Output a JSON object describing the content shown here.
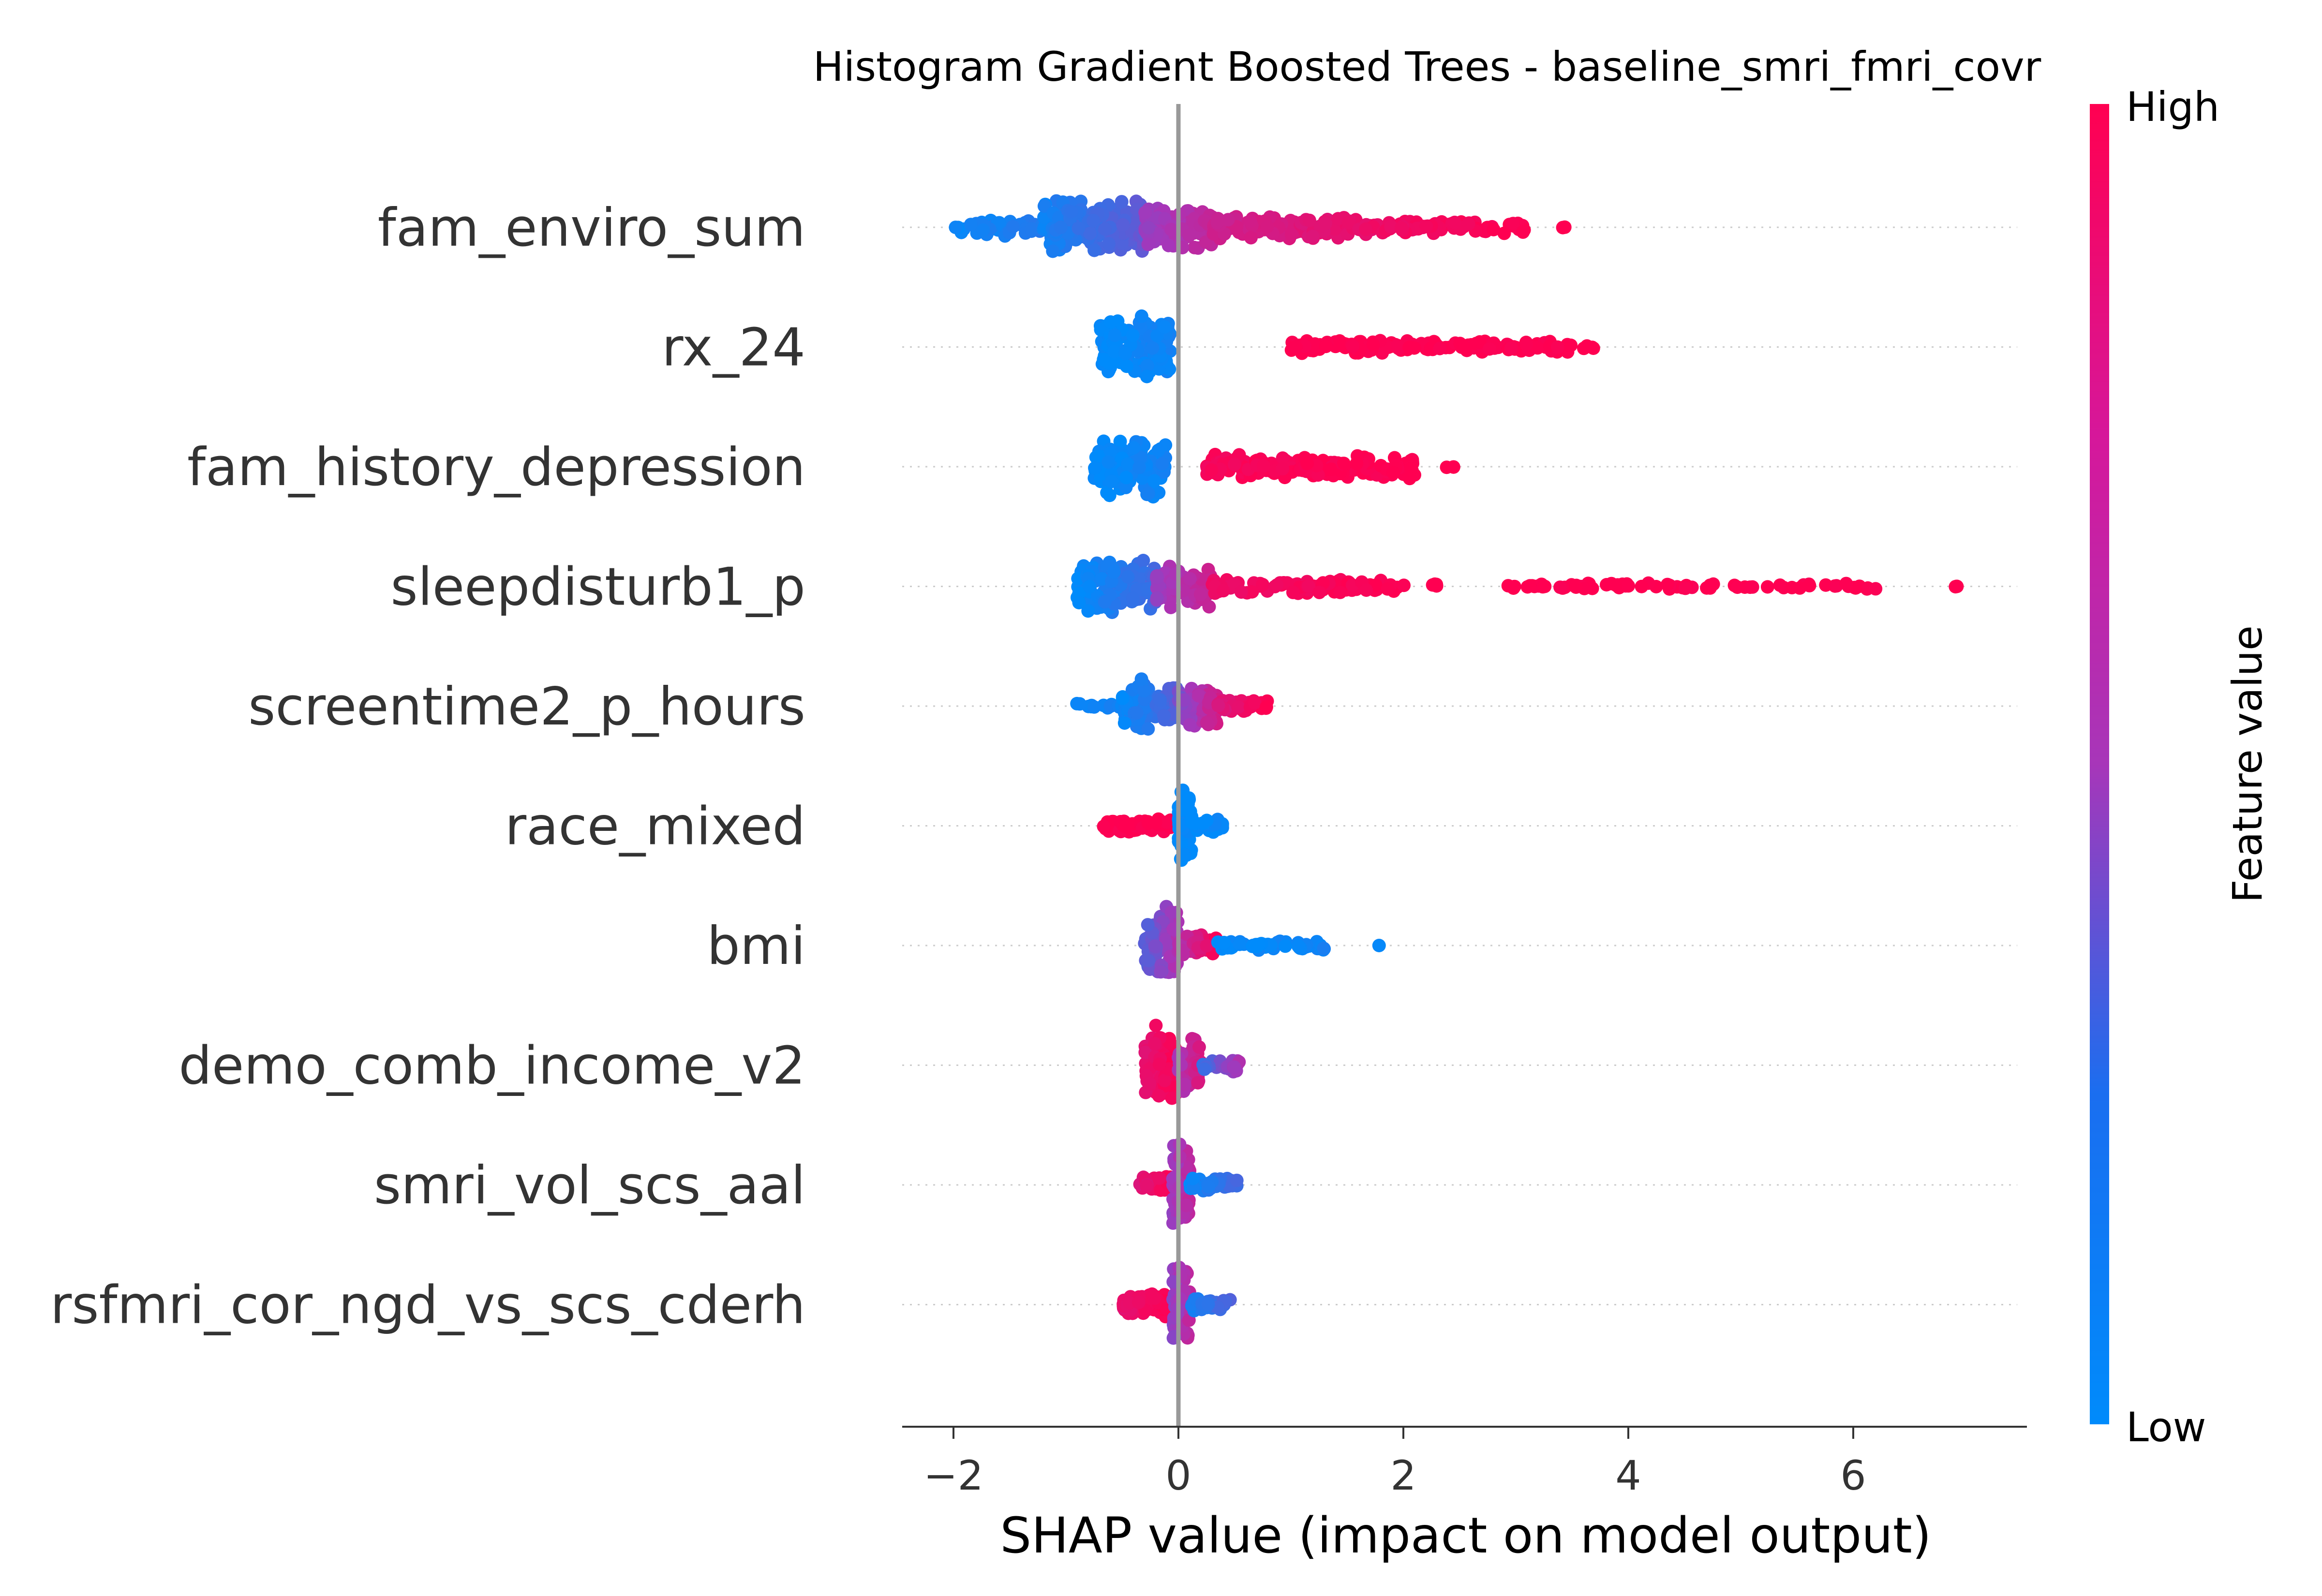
{
  "chart_data": {
    "type": "scatter",
    "subtype": "shap-beeswarm-summary",
    "title": "Histogram Gradient Boosted Trees - baseline_smri_fmri_covr",
    "xlabel": "SHAP value (impact on model output)",
    "xlim": [
      -2.4,
      7.5
    ],
    "xticks": [
      -2,
      0,
      2,
      4,
      6
    ],
    "xtick_labels": [
      "−2",
      "0",
      "2",
      "4",
      "6"
    ],
    "zero_line": 0,
    "colorbar": {
      "label": "Feature value",
      "high_label": "High",
      "low_label": "Low",
      "low_color": "#008bfb",
      "mid_color": "#a736b9",
      "high_color": "#ff0051"
    },
    "features": [
      {
        "name": "fam_enviro_sum",
        "segments": [
          {
            "min": -2.0,
            "max": -1.2,
            "c0": 0.02,
            "c1": 0.1,
            "n": 40,
            "spread": 0.18
          },
          {
            "min": -1.2,
            "max": -0.3,
            "c0": 0.05,
            "c1": 0.3,
            "n": 180,
            "spread": 0.55
          },
          {
            "min": -0.3,
            "max": 0.3,
            "c0": 0.45,
            "c1": 0.65,
            "n": 130,
            "spread": 0.45
          },
          {
            "min": 0.3,
            "max": 1.6,
            "c0": 0.7,
            "c1": 0.88,
            "n": 130,
            "spread": 0.25
          },
          {
            "min": 1.6,
            "max": 3.1,
            "c0": 0.88,
            "c1": 1.0,
            "n": 90,
            "spread": 0.14
          },
          {
            "min": 3.3,
            "max": 3.45,
            "c0": 1.0,
            "c1": 1.0,
            "n": 2,
            "spread": 0.02
          }
        ]
      },
      {
        "name": "rx_24",
        "segments": [
          {
            "min": -0.7,
            "max": -0.05,
            "c0": 0.0,
            "c1": 0.05,
            "n": 130,
            "spread": 0.62
          },
          {
            "min": 0.95,
            "max": 3.5,
            "c0": 1.0,
            "c1": 1.0,
            "n": 150,
            "spread": 0.14
          },
          {
            "min": 3.5,
            "max": 3.75,
            "c0": 1.0,
            "c1": 1.0,
            "n": 4,
            "spread": 0.05
          }
        ]
      },
      {
        "name": "fam_history_depression",
        "segments": [
          {
            "min": -0.75,
            "max": -0.1,
            "c0": 0.0,
            "c1": 0.05,
            "n": 130,
            "spread": 0.62
          },
          {
            "min": 0.25,
            "max": 2.1,
            "c0": 0.95,
            "c1": 1.0,
            "n": 170,
            "spread": 0.26
          },
          {
            "min": 2.35,
            "max": 2.5,
            "c0": 1.0,
            "c1": 1.0,
            "n": 3,
            "spread": 0.04
          }
        ]
      },
      {
        "name": "sleepdisturb1_p",
        "segments": [
          {
            "min": -0.9,
            "max": -0.2,
            "c0": 0.0,
            "c1": 0.2,
            "n": 140,
            "spread": 0.55
          },
          {
            "min": -0.2,
            "max": 0.3,
            "c0": 0.45,
            "c1": 0.7,
            "n": 80,
            "spread": 0.45
          },
          {
            "min": 0.3,
            "max": 2.0,
            "c0": 0.9,
            "c1": 1.0,
            "n": 90,
            "spread": 0.16
          },
          {
            "min": 2.0,
            "max": 2.3,
            "c0": 1.0,
            "c1": 1.0,
            "n": 5,
            "spread": 0.05
          },
          {
            "min": 2.85,
            "max": 6.2,
            "c0": 1.0,
            "c1": 1.0,
            "n": 70,
            "spread": 0.07
          },
          {
            "min": 6.9,
            "max": 7.05,
            "c0": 1.0,
            "c1": 1.0,
            "n": 3,
            "spread": 0.03
          }
        ]
      },
      {
        "name": "screentime2_p_hours",
        "segments": [
          {
            "min": -1.0,
            "max": -0.5,
            "c0": 0.0,
            "c1": 0.05,
            "n": 15,
            "spread": 0.06
          },
          {
            "min": -0.5,
            "max": 0.0,
            "c0": 0.02,
            "c1": 0.25,
            "n": 110,
            "spread": 0.55
          },
          {
            "min": 0.0,
            "max": 0.35,
            "c0": 0.35,
            "c1": 0.75,
            "n": 90,
            "spread": 0.45
          },
          {
            "min": 0.35,
            "max": 0.8,
            "c0": 0.8,
            "c1": 1.0,
            "n": 50,
            "spread": 0.15
          }
        ]
      },
      {
        "name": "race_mixed",
        "segments": [
          {
            "min": -0.7,
            "max": -0.05,
            "c0": 1.0,
            "c1": 1.0,
            "n": 80,
            "spread": 0.14
          },
          {
            "min": 0.0,
            "max": 0.12,
            "c0": 0.0,
            "c1": 0.0,
            "n": 80,
            "spread": 0.8
          },
          {
            "min": 0.12,
            "max": 0.42,
            "c0": 0.0,
            "c1": 0.03,
            "n": 30,
            "spread": 0.14
          }
        ]
      },
      {
        "name": "bmi",
        "segments": [
          {
            "min": -0.3,
            "max": 0.0,
            "c0": 0.25,
            "c1": 0.55,
            "n": 80,
            "spread": 0.8
          },
          {
            "min": 0.0,
            "max": 0.35,
            "c0": 0.55,
            "c1": 1.0,
            "n": 80,
            "spread": 0.22
          },
          {
            "min": 0.35,
            "max": 1.3,
            "c0": 0.0,
            "c1": 0.05,
            "n": 65,
            "spread": 0.1
          },
          {
            "min": 1.75,
            "max": 1.8,
            "c0": 0.0,
            "c1": 0.0,
            "n": 1,
            "spread": 0.0
          }
        ]
      },
      {
        "name": "demo_comb_income_v2",
        "segments": [
          {
            "min": -0.3,
            "max": 0.0,
            "c0": 0.85,
            "c1": 1.0,
            "n": 80,
            "spread": 0.8
          },
          {
            "min": 0.0,
            "max": 0.2,
            "c0": 0.5,
            "c1": 0.8,
            "n": 60,
            "spread": 0.55
          },
          {
            "min": 0.2,
            "max": 0.55,
            "c0": 0.15,
            "c1": 0.55,
            "n": 30,
            "spread": 0.15
          }
        ]
      },
      {
        "name": "smri_vol_scs_aal",
        "segments": [
          {
            "min": -0.35,
            "max": -0.05,
            "c0": 0.8,
            "c1": 1.0,
            "n": 40,
            "spread": 0.2
          },
          {
            "min": -0.05,
            "max": 0.1,
            "c0": 0.45,
            "c1": 0.65,
            "n": 90,
            "spread": 0.85
          },
          {
            "min": 0.1,
            "max": 0.52,
            "c0": 0.02,
            "c1": 0.2,
            "n": 50,
            "spread": 0.15
          }
        ]
      },
      {
        "name": "rsfmri_cor_ngd_vs_scs_cderh",
        "segments": [
          {
            "min": -0.5,
            "max": -0.05,
            "c0": 0.85,
            "c1": 1.0,
            "n": 70,
            "spread": 0.25
          },
          {
            "min": -0.05,
            "max": 0.1,
            "c0": 0.4,
            "c1": 0.65,
            "n": 90,
            "spread": 0.85
          },
          {
            "min": 0.1,
            "max": 0.47,
            "c0": 0.05,
            "c1": 0.25,
            "n": 40,
            "spread": 0.14
          }
        ]
      }
    ]
  }
}
